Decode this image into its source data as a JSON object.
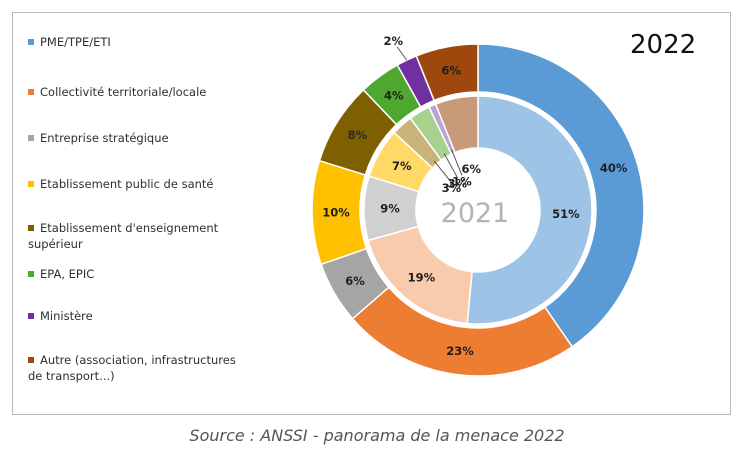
{
  "chart_data": {
    "type": "donut",
    "title": "2022",
    "inner_ring_label": "2021",
    "categories": [
      "PME/TPE/ETI",
      "Collectivité territoriale/locale",
      "Entreprise stratégique",
      "Etablissement public de santé",
      "Etablissement d'enseignement supérieur",
      "EPA, EPIC",
      "Ministère",
      "Autre (association, infrastructures de transport...)"
    ],
    "series": [
      {
        "name": "2022",
        "ring": "outer",
        "values": [
          40,
          23,
          6,
          10,
          8,
          4,
          2,
          6
        ],
        "labels": [
          "40%",
          "23%",
          "6%",
          "10%",
          "8%",
          "4%",
          "2%",
          "6%"
        ]
      },
      {
        "name": "2021",
        "ring": "inner",
        "values": [
          51,
          19,
          9,
          7,
          3,
          3,
          1,
          6
        ],
        "labels": [
          "51%",
          "19%",
          "9%",
          "7%",
          "3%",
          "3%",
          "1%",
          "6%"
        ]
      }
    ],
    "colors": {
      "outer": [
        "#5b9bd5",
        "#ed7d31",
        "#a5a5a5",
        "#ffc000",
        "#7f6000",
        "#4ea72e",
        "#7030a0",
        "#9e480e"
      ],
      "inner": [
        "#9dc3e6",
        "#f8cbad",
        "#d0d0d0",
        "#ffd966",
        "#c9b37a",
        "#a9d18e",
        "#b4a7d6",
        "#c99a7a"
      ]
    },
    "legend_position": "left"
  },
  "legend": {
    "items": [
      {
        "lines": [
          "PME/TPE/ETI"
        ]
      },
      {
        "lines": [
          "Collectivité territoriale/locale"
        ]
      },
      {
        "lines": [
          "Entreprise stratégique"
        ]
      },
      {
        "lines": [
          "Etablissement public de santé"
        ]
      },
      {
        "lines": [
          "Etablissement d'enseignement",
          "supérieur"
        ]
      },
      {
        "lines": [
          "EPA, EPIC"
        ]
      },
      {
        "lines": [
          "Ministère"
        ]
      },
      {
        "lines": [
          "Autre (association, infrastructures",
          "de transport...)"
        ]
      }
    ]
  },
  "caption": "Source : ANSSI - panorama de la menace 2022"
}
